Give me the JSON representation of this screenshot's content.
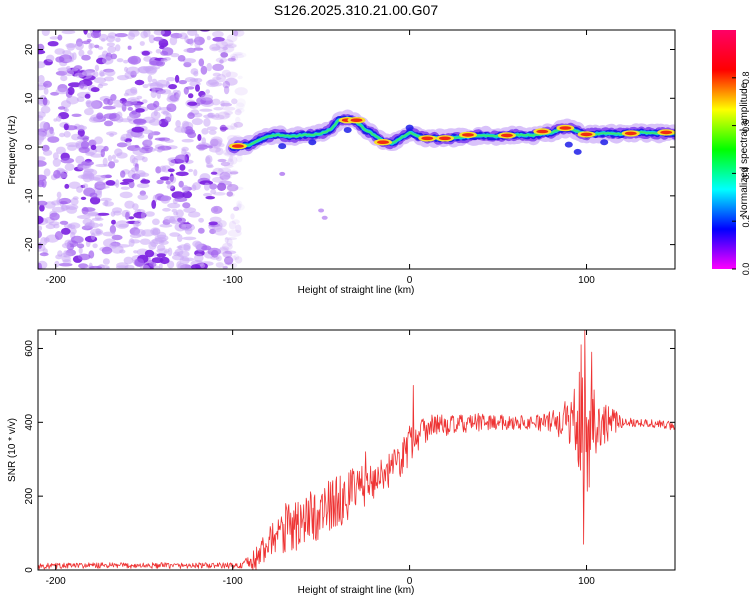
{
  "title": "S126.2025.310.21.00.G07",
  "chart_data": [
    {
      "type": "heatmap",
      "name": "spectrogram",
      "xlabel": "Height of straight line (km)",
      "ylabel": "Frequency (Hz)",
      "xlim": [
        -210,
        150
      ],
      "ylim": [
        -25,
        24
      ],
      "xticks": [
        -200,
        -100,
        0,
        100
      ],
      "yticks": [
        -20,
        -10,
        0,
        10,
        20
      ],
      "colorbar": {
        "label": "Normalized spectral amplitude",
        "range": [
          0,
          1
        ],
        "ticks": [
          "0.0",
          "0.2",
          "0.4",
          "0.6",
          "0.8"
        ],
        "colors": [
          "#ff00ff",
          "#0000ff",
          "#00ffff",
          "#00ff00",
          "#ffff00",
          "#ff0000",
          "#ff0066"
        ]
      },
      "noise_region_x": [
        -210,
        -95
      ],
      "ridge": {
        "x": [
          -100,
          -95,
          -90,
          -85,
          -80,
          -75,
          -70,
          -65,
          -60,
          -55,
          -50,
          -45,
          -40,
          -35,
          -30,
          -25,
          -20,
          -15,
          -10,
          -5,
          0,
          5,
          10,
          20,
          30,
          40,
          50,
          60,
          70,
          80,
          85,
          90,
          95,
          100,
          110,
          120,
          130,
          140,
          150
        ],
        "freq": [
          0,
          0.2,
          0.5,
          1.5,
          2.2,
          2.5,
          2.3,
          2.2,
          2.5,
          2.5,
          2.8,
          3.5,
          5.5,
          5.8,
          5.2,
          3.5,
          2.5,
          1.2,
          0.8,
          1.8,
          3,
          2.2,
          1.8,
          1.8,
          2,
          2.4,
          2.2,
          2.5,
          2.4,
          3,
          3.6,
          3.9,
          3.2,
          2.6,
          2.8,
          2.7,
          3,
          2.8,
          2.8
        ],
        "peaks": [
          [
            -97,
            0.2
          ],
          [
            -35,
            5.5
          ],
          [
            -30,
            5.5
          ],
          [
            -15,
            1
          ],
          [
            10,
            1.8
          ],
          [
            20,
            1.8
          ],
          [
            33,
            2.5
          ],
          [
            55,
            2.4
          ],
          [
            75,
            3.2
          ],
          [
            88,
            3.9
          ],
          [
            100,
            2.6
          ],
          [
            125,
            2.8
          ],
          [
            145,
            3
          ]
        ]
      }
    },
    {
      "type": "line",
      "name": "snr",
      "xlabel": "Height of straight line (km)",
      "ylabel": "SNR (10 * v/v)",
      "xlim": [
        -210,
        150
      ],
      "ylim": [
        0,
        650
      ],
      "xticks": [
        -200,
        -100,
        0,
        100
      ],
      "yticks": [
        0,
        200,
        400,
        600
      ],
      "color": "#ee3333",
      "x": [
        -210,
        -190,
        -170,
        -150,
        -130,
        -110,
        -95,
        -85,
        -80,
        -75,
        -70,
        -60,
        -50,
        -40,
        -30,
        -20,
        -10,
        -5,
        0,
        5,
        10,
        20,
        30,
        40,
        50,
        60,
        70,
        80,
        90,
        95,
        100,
        105,
        110,
        120,
        130,
        140,
        150
      ],
      "snr": [
        10,
        12,
        12,
        12,
        12,
        12,
        12,
        30,
        60,
        80,
        95,
        110,
        140,
        170,
        200,
        230,
        265,
        290,
        320,
        360,
        380,
        390,
        395,
        400,
        400,
        400,
        400,
        400,
        405,
        400,
        380,
        390,
        400,
        400,
        400,
        395,
        390
      ],
      "noise_amp": [
        8,
        8,
        8,
        8,
        8,
        8,
        8,
        40,
        60,
        70,
        80,
        90,
        90,
        90,
        80,
        60,
        60,
        70,
        70,
        60,
        50,
        30,
        25,
        25,
        20,
        20,
        20,
        30,
        60,
        150,
        180,
        120,
        60,
        15,
        12,
        12,
        12
      ],
      "extremes": [
        [
          99,
          650
        ],
        [
          98.5,
          70
        ],
        [
          97,
          610
        ],
        [
          103,
          590
        ],
        [
          -70,
          180
        ],
        [
          -58,
          185
        ],
        [
          -25,
          320
        ],
        [
          0,
          390
        ],
        [
          2,
          500
        ]
      ]
    }
  ]
}
